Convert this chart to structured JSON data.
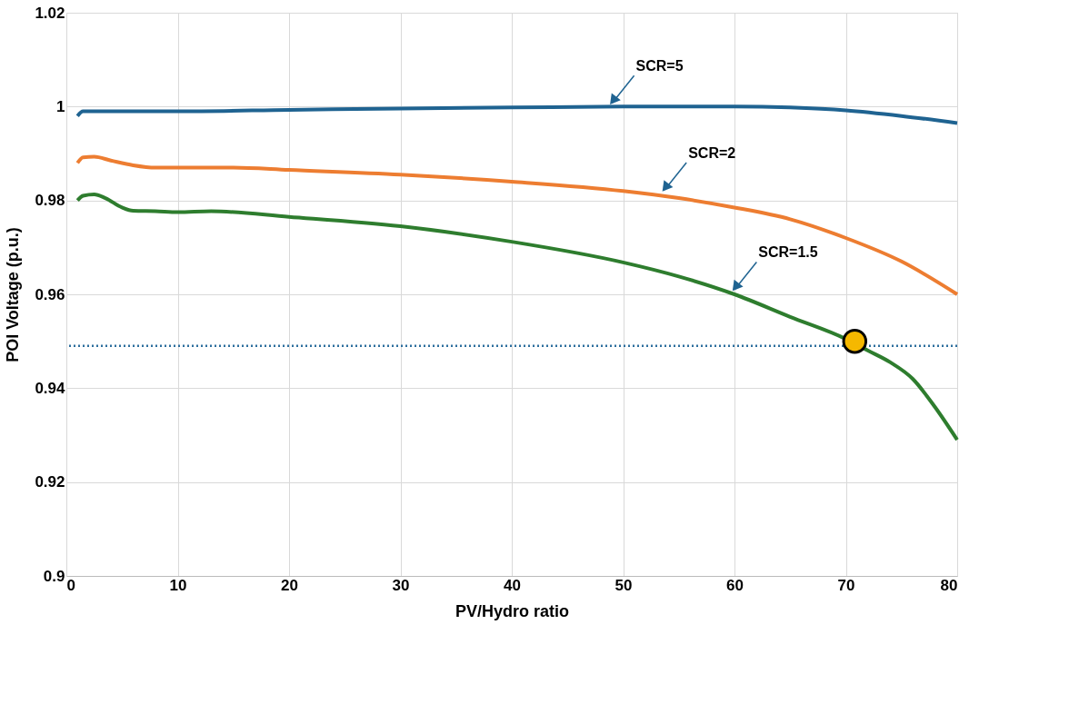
{
  "chart_data": {
    "type": "line",
    "xlabel": "PV/Hydro ratio",
    "ylabel": "POI Voltage (p.u.)",
    "xlim": [
      0,
      80
    ],
    "xticks": [
      0,
      10,
      20,
      30,
      40,
      50,
      60,
      70,
      80
    ],
    "ylim": [
      0.9,
      1.02
    ],
    "yticks": [
      0.9,
      0.92,
      0.94,
      0.96,
      0.98,
      1,
      1.02
    ],
    "grid": true,
    "marker": "none",
    "line_style": "solid",
    "series": [
      {
        "color": "#1f6391",
        "x": [
          1,
          1.5,
          3,
          10,
          20,
          30,
          40,
          50,
          60,
          65,
          70,
          75,
          80
        ],
        "values": [
          0.998,
          0.999,
          0.999,
          0.999,
          0.9993,
          0.9996,
          0.9998,
          1.0,
          1.0,
          0.9998,
          0.9992,
          0.998,
          0.9965
        ]
      },
      {
        "color": "#ed7d31",
        "x": [
          1,
          1.5,
          2.5,
          4,
          6,
          8,
          10,
          15,
          20,
          30,
          40,
          50,
          55,
          60,
          65,
          70,
          75,
          80
        ],
        "values": [
          0.988,
          0.9892,
          0.9893,
          0.9885,
          0.9875,
          0.987,
          0.987,
          0.987,
          0.9865,
          0.9855,
          0.984,
          0.982,
          0.9805,
          0.9785,
          0.976,
          0.972,
          0.967,
          0.96
        ]
      },
      {
        "color": "#2e7d2e",
        "x": [
          1,
          1.5,
          2.5,
          3.5,
          5,
          6,
          8,
          10,
          13,
          20,
          30,
          40,
          50,
          55,
          60,
          65,
          70,
          72,
          74,
          76,
          78,
          80
        ],
        "values": [
          0.98,
          0.981,
          0.9813,
          0.9805,
          0.9785,
          0.9778,
          0.9777,
          0.9775,
          0.9777,
          0.9765,
          0.9745,
          0.9712,
          0.9668,
          0.9638,
          0.96,
          0.9552,
          0.9505,
          0.948,
          0.9455,
          0.942,
          0.936,
          0.929
        ]
      },
      {
        "type": "scatter",
        "marker": "circle",
        "color": "#f5b800",
        "x": [
          70.8
        ],
        "values": [
          0.95
        ]
      }
    ],
    "ref_lines": [
      {
        "axis": "y",
        "value": 0.949,
        "color": "#2e6f9e",
        "line_style": "dotted"
      }
    ],
    "annotations": [
      {
        "text": "SCR=5",
        "x": 48.7,
        "y": 1.0
      },
      {
        "text": "SCR=2",
        "x": 53.4,
        "y": 0.9815
      },
      {
        "text": "SCR=1.5",
        "x": 59.7,
        "y": 0.9603
      }
    ]
  }
}
